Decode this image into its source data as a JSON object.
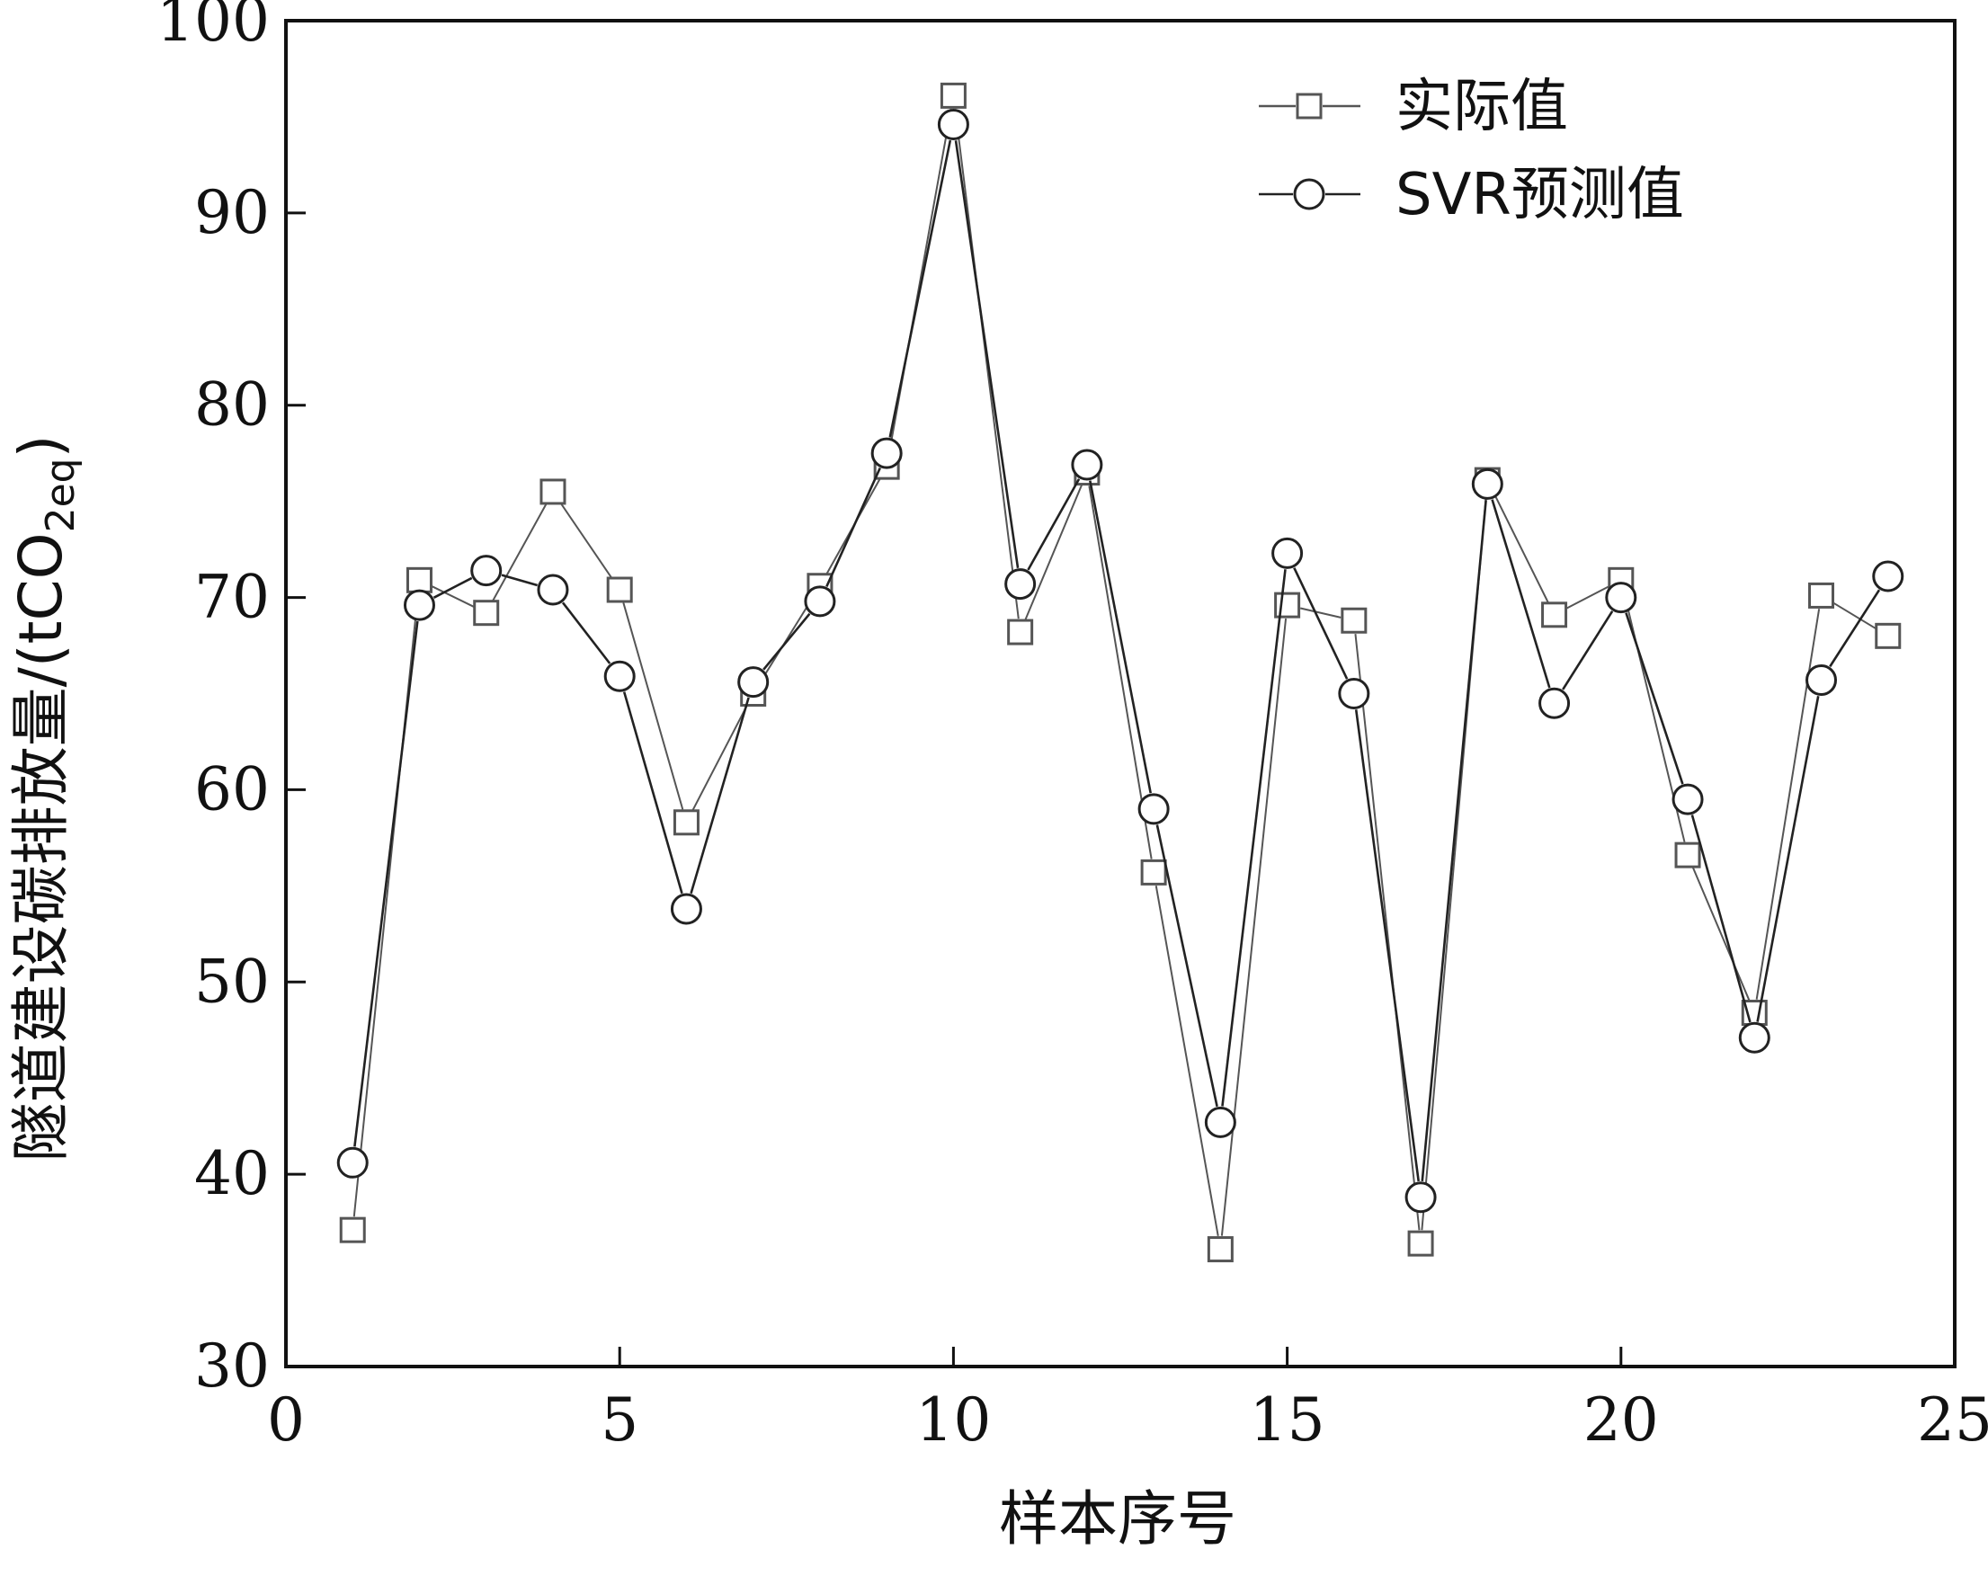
{
  "chart_data": {
    "type": "line",
    "title": "",
    "xlabel": "样本序号",
    "ylabel": "隧道建设碳排放量/(tCO",
    "ylabel_subscript": "2eq",
    "ylabel_suffix": ")",
    "xlim": [
      0,
      25
    ],
    "ylim": [
      30,
      100
    ],
    "x_ticks": [
      0,
      5,
      10,
      15,
      20,
      25
    ],
    "y_ticks": [
      30,
      40,
      50,
      60,
      70,
      80,
      90,
      100
    ],
    "grid": false,
    "legend_position": "top-right",
    "x": [
      1,
      2,
      3,
      4,
      5,
      6,
      7,
      8,
      9,
      10,
      11,
      12,
      13,
      14,
      15,
      16,
      17,
      18,
      19,
      20,
      21,
      22,
      23,
      24
    ],
    "series": [
      {
        "name": "实际值",
        "marker": "square",
        "color": "#555555",
        "values": [
          37.1,
          70.9,
          69.2,
          75.5,
          70.4,
          58.3,
          65.0,
          70.6,
          76.8,
          96.1,
          68.2,
          76.5,
          55.7,
          36.1,
          69.6,
          68.8,
          36.4,
          76.1,
          69.1,
          70.9,
          56.6,
          48.4,
          70.1,
          68.0
        ]
      },
      {
        "name": "SVR预测值",
        "marker": "circle",
        "color": "#222222",
        "values": [
          40.6,
          69.6,
          71.4,
          70.4,
          65.9,
          53.8,
          65.6,
          69.8,
          77.5,
          94.6,
          70.7,
          76.9,
          59.0,
          42.7,
          72.3,
          65.0,
          38.8,
          75.9,
          64.5,
          70.0,
          59.5,
          47.1,
          65.7,
          71.1
        ]
      }
    ]
  }
}
